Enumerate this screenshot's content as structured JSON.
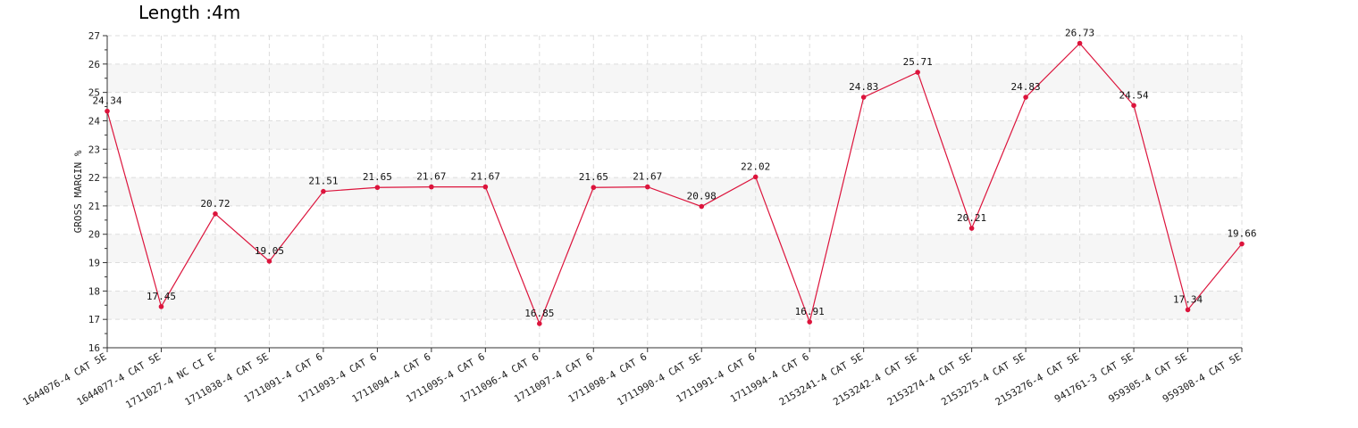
{
  "chart_data": {
    "type": "line",
    "title": "Length :4m",
    "xlabel": "",
    "ylabel": "GROSS MARGIN %",
    "ylim": [
      16,
      27
    ],
    "yticks": [
      16,
      17,
      18,
      19,
      20,
      21,
      22,
      23,
      24,
      25,
      26,
      27
    ],
    "grid": true,
    "categories": [
      "1644076-4 CAT 5E",
      "1644077-4 CAT 5E",
      "1711027-4 NC CI E",
      "1711038-4 CAT 5E",
      "1711091-4 CAT 6",
      "1711093-4 CAT 6",
      "1711094-4 CAT 6",
      "1711095-4 CAT 6",
      "1711096-4 CAT 6",
      "1711097-4 CAT 6",
      "1711098-4 CAT 6",
      "1711990-4 CAT 5E",
      "1711991-4 CAT 6",
      "1711994-4 CAT 6",
      "2153241-4 CAT 5E",
      "2153242-4 CAT 5E",
      "2153274-4 CAT 5E",
      "2153275-4 CAT 5E",
      "2153276-4 CAT 5E",
      "941761-3 CAT 5E",
      "959305-4 CAT 5E",
      "959308-4 CAT 5E"
    ],
    "series": [
      {
        "values": [
          24.34,
          17.45,
          20.72,
          19.05,
          21.51,
          21.65,
          21.67,
          21.67,
          16.85,
          21.65,
          21.67,
          20.98,
          22.02,
          16.91,
          24.83,
          25.71,
          20.21,
          24.83,
          26.73,
          24.54,
          17.34,
          19.66
        ],
        "labels": [
          "24.34",
          "17.45",
          "20.72",
          "19.05",
          "21.51",
          "21.65",
          "21.67",
          "21.67",
          "16.85",
          "21.65",
          "21.67",
          "20.98",
          "22.02",
          "16.91",
          "24.83",
          "25.71",
          "20.21",
          "24.83",
          "26.73",
          "24.54",
          "17.34",
          "19.66"
        ],
        "color": "#dc143c"
      }
    ],
    "colors": {
      "line": "#dc143c",
      "band": "#f6f6f6",
      "grid": "#dddddd",
      "axis": "#333333"
    }
  }
}
